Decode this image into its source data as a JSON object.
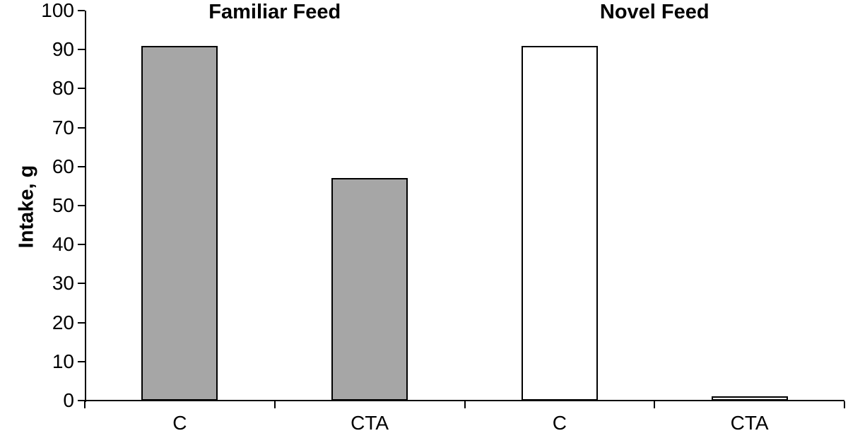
{
  "chart_data": {
    "type": "bar",
    "title": "",
    "ylabel": "Intake, g",
    "ylim": [
      0,
      100
    ],
    "ytick_step": 10,
    "grid": false,
    "legend": "none",
    "bar_border_color": "#000000",
    "background_color": "#ffffff",
    "groups": [
      {
        "title": "Familiar Feed",
        "fill": "#a6a6a6",
        "categories": [
          "C",
          "CTA"
        ],
        "values": [
          91,
          57
        ]
      },
      {
        "title": "Novel Feed",
        "fill": "#ffffff",
        "categories": [
          "C",
          "CTA"
        ],
        "values": [
          91,
          1
        ]
      }
    ]
  }
}
